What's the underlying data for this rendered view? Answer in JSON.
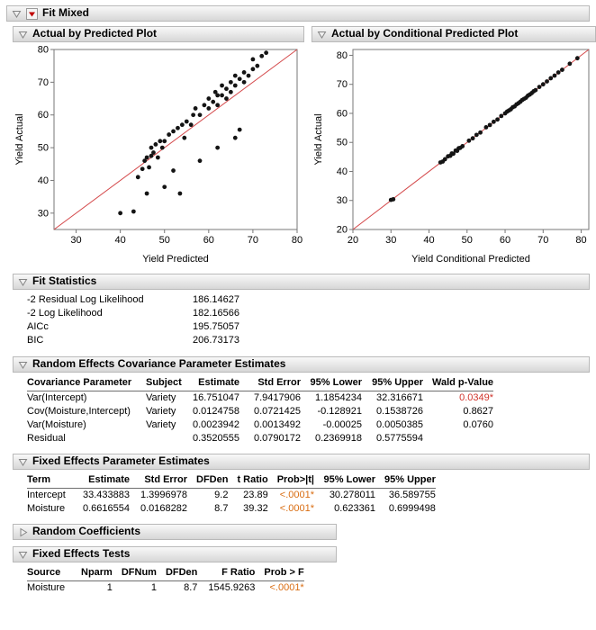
{
  "report": {
    "title": "Fit Mixed"
  },
  "colors": {
    "p_significant": "#d0342c",
    "p_strong": "#d96d12",
    "diagonal_line": "#d4494b",
    "point": "#141414"
  },
  "sections": {
    "actual_by_predicted": {
      "title": "Actual by Predicted Plot"
    },
    "actual_by_conditional": {
      "title": "Actual by Conditional Predicted Plot"
    },
    "fit_statistics": {
      "title": "Fit Statistics",
      "rows": [
        {
          "label": "-2 Residual Log Likelihood",
          "value": "186.14627"
        },
        {
          "label": "-2 Log Likelihood",
          "value": "182.16566"
        },
        {
          "label": "AICc",
          "value": "195.75057"
        },
        {
          "label": "BIC",
          "value": "206.73173"
        }
      ]
    },
    "random_effects": {
      "title": "Random Effects Covariance Parameter Estimates",
      "headers": [
        "Covariance Parameter",
        "Subject",
        "Estimate",
        "Std Error",
        "95% Lower",
        "95% Upper",
        "Wald p-Value"
      ],
      "rows": [
        [
          "Var(Intercept)",
          "Variety",
          "16.751047",
          "7.9417906",
          "1.1854234",
          "32.316671",
          "0.0349*"
        ],
        [
          "Cov(Moisture,Intercept)",
          "Variety",
          "0.0124758",
          "0.0721425",
          "-0.128921",
          "0.1538726",
          "0.8627"
        ],
        [
          "Var(Moisture)",
          "Variety",
          "0.0023942",
          "0.0013492",
          "-0.00025",
          "0.0050385",
          "0.0760"
        ],
        [
          "Residual",
          "",
          "0.3520555",
          "0.0790172",
          "0.2369918",
          "0.5775594",
          ""
        ]
      ]
    },
    "fixed_effects": {
      "title": "Fixed Effects Parameter Estimates",
      "headers": [
        "Term",
        "Estimate",
        "Std Error",
        "DFDen",
        "t Ratio",
        "Prob>|t|",
        "95% Lower",
        "95% Upper"
      ],
      "rows": [
        [
          "Intercept",
          "33.433883",
          "1.3996978",
          "9.2",
          "23.89",
          "<.0001*",
          "30.278011",
          "36.589755"
        ],
        [
          "Moisture",
          "0.6616554",
          "0.0168282",
          "8.7",
          "39.32",
          "<.0001*",
          "0.623361",
          "0.6999498"
        ]
      ]
    },
    "random_coefficients": {
      "title": "Random Coefficients"
    },
    "fixed_effects_tests": {
      "title": "Fixed Effects Tests",
      "headers": [
        "Source",
        "Nparm",
        "DFNum",
        "DFDen",
        "F Ratio",
        "Prob > F"
      ],
      "rows": [
        [
          "Moisture",
          "1",
          "1",
          "8.7",
          "1545.9263",
          "<.0001*"
        ]
      ]
    }
  },
  "chart_data": [
    {
      "type": "scatter",
      "title": "Actual by Predicted Plot",
      "xlabel": "Yield Predicted",
      "ylabel": "Yield Actual",
      "xlim": [
        25,
        80
      ],
      "ylim": [
        25,
        80
      ],
      "xticks": [
        30,
        40,
        50,
        60,
        70,
        80
      ],
      "yticks": [
        30,
        40,
        50,
        60,
        70,
        80
      ],
      "diagonal": true,
      "legend": "none",
      "points": [
        [
          40,
          30
        ],
        [
          43,
          30.5
        ],
        [
          44,
          41
        ],
        [
          45,
          43.5
        ],
        [
          45.5,
          46
        ],
        [
          46,
          47
        ],
        [
          46.5,
          44
        ],
        [
          47,
          47.5
        ],
        [
          47,
          50
        ],
        [
          47.5,
          48.5
        ],
        [
          48,
          51
        ],
        [
          48.5,
          47
        ],
        [
          49,
          52
        ],
        [
          49.5,
          50
        ],
        [
          46,
          36
        ],
        [
          50,
          38
        ],
        [
          52,
          43
        ],
        [
          53.5,
          36
        ],
        [
          50,
          52
        ],
        [
          51,
          54
        ],
        [
          52,
          55
        ],
        [
          53,
          56
        ],
        [
          54,
          57
        ],
        [
          54.5,
          53
        ],
        [
          55,
          58
        ],
        [
          56,
          57
        ],
        [
          56.5,
          60
        ],
        [
          58,
          46
        ],
        [
          62,
          50
        ],
        [
          66,
          53
        ],
        [
          67,
          55.5
        ],
        [
          57,
          62
        ],
        [
          58,
          60
        ],
        [
          59,
          63
        ],
        [
          60,
          62
        ],
        [
          60,
          65
        ],
        [
          61,
          64
        ],
        [
          61.5,
          67
        ],
        [
          62,
          66
        ],
        [
          62,
          63
        ],
        [
          63,
          66
        ],
        [
          63,
          69
        ],
        [
          64,
          65
        ],
        [
          64,
          68
        ],
        [
          65,
          67
        ],
        [
          65,
          70
        ],
        [
          66,
          69
        ],
        [
          66,
          72
        ],
        [
          67,
          71
        ],
        [
          68,
          70
        ],
        [
          68,
          73
        ],
        [
          69,
          72
        ],
        [
          70,
          74
        ],
        [
          70,
          77
        ],
        [
          71,
          75
        ],
        [
          72,
          78
        ],
        [
          73,
          79
        ]
      ]
    },
    {
      "type": "scatter",
      "title": "Actual by Conditional Predicted Plot",
      "xlabel": "Yield Conditional Predicted",
      "ylabel": "Yield Actual",
      "xlim": [
        20,
        82
      ],
      "ylim": [
        20,
        82
      ],
      "xticks": [
        20,
        30,
        40,
        50,
        60,
        70,
        80
      ],
      "yticks": [
        20,
        30,
        40,
        50,
        60,
        70,
        80
      ],
      "diagonal": true,
      "legend": "none",
      "points": [
        [
          30,
          30.2
        ],
        [
          30.6,
          30.4
        ],
        [
          43,
          43.1
        ],
        [
          43.6,
          43.4
        ],
        [
          44.2,
          44.2
        ],
        [
          45,
          45.2
        ],
        [
          45.6,
          45.4
        ],
        [
          46,
          46.2
        ],
        [
          46.4,
          46.1
        ],
        [
          47,
          47.2
        ],
        [
          47.4,
          47.1
        ],
        [
          47.8,
          48
        ],
        [
          48.2,
          48.1
        ],
        [
          48.8,
          48.7
        ],
        [
          50.5,
          50.6
        ],
        [
          51.5,
          51.4
        ],
        [
          52.5,
          52.6
        ],
        [
          53.5,
          53.4
        ],
        [
          55,
          55.2
        ],
        [
          56,
          56
        ],
        [
          57,
          57.1
        ],
        [
          58,
          57.9
        ],
        [
          59,
          59.1
        ],
        [
          60,
          60
        ],
        [
          60.5,
          60.6
        ],
        [
          61,
          61
        ],
        [
          61.5,
          61.4
        ],
        [
          62,
          62.1
        ],
        [
          62.5,
          62.4
        ],
        [
          63,
          63.1
        ],
        [
          63.5,
          63.5
        ],
        [
          64,
          64
        ],
        [
          64.5,
          64.6
        ],
        [
          65,
          65
        ],
        [
          65.5,
          65.4
        ],
        [
          66,
          66.1
        ],
        [
          66.5,
          66.5
        ],
        [
          67,
          67
        ],
        [
          67.5,
          67.6
        ],
        [
          68,
          68
        ],
        [
          69,
          69.1
        ],
        [
          70,
          70
        ],
        [
          71,
          71
        ],
        [
          72,
          72.1
        ],
        [
          73,
          73
        ],
        [
          74,
          74.1
        ],
        [
          75,
          75
        ],
        [
          77,
          77.1
        ],
        [
          79,
          79
        ]
      ]
    }
  ]
}
